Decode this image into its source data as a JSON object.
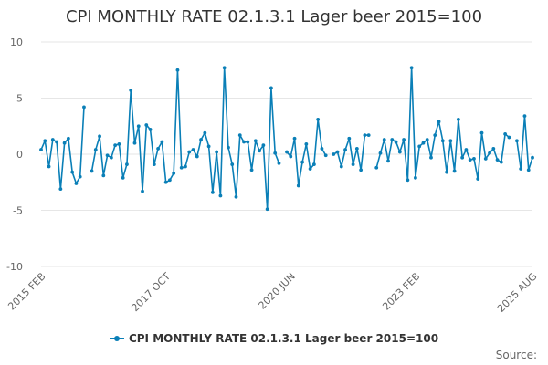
{
  "chart_title": "CPI MONTHLY RATE 02.1.3.1 Lager beer 2015=100",
  "source_label": "Source:",
  "legend": {
    "label": "CPI MONTHLY RATE 02.1.3.1 Lager beer 2015=100"
  },
  "colors": {
    "series": "#0a7fb7",
    "grid": "#e6e6e6",
    "text": "#333333",
    "axis_text": "#666666"
  },
  "chart_data": {
    "type": "line",
    "title": "CPI MONTHLY RATE 02.1.3.1 Lager beer 2015=100",
    "xlabel": "",
    "ylabel": "",
    "ylim": [
      -10,
      10
    ],
    "yticks": [
      10,
      5,
      0,
      -5,
      -10
    ],
    "x_start": "2015 FEB",
    "x_end": "2025 AUG",
    "xticks": [
      "2015 FEB",
      "2017 OCT",
      "2020 JUN",
      "2023 FEB",
      "2025 AUG"
    ],
    "grid": true,
    "legend_position": "bottom",
    "series": [
      {
        "name": "CPI MONTHLY RATE 02.1.3.1 Lager beer 2015=100",
        "values": [
          0.4,
          1.2,
          -1.1,
          1.3,
          1.1,
          -3.1,
          1.0,
          1.4,
          -1.6,
          -2.6,
          -2.0,
          4.2,
          null,
          -1.5,
          0.4,
          1.6,
          -1.9,
          -0.1,
          -0.3,
          0.8,
          0.9,
          -2.1,
          -0.9,
          5.7,
          1.0,
          2.5,
          -3.3,
          2.6,
          2.2,
          -0.9,
          0.5,
          1.1,
          -2.5,
          -2.3,
          -1.7,
          7.5,
          -1.2,
          -1.1,
          0.2,
          0.4,
          -0.2,
          1.3,
          1.9,
          0.7,
          -3.4,
          0.2,
          -3.7,
          7.7,
          0.6,
          -0.9,
          -3.8,
          1.7,
          1.1,
          1.1,
          -1.4,
          1.2,
          0.3,
          0.8,
          -4.9,
          5.9,
          0.1,
          -0.8,
          null,
          0.2,
          -0.2,
          1.4,
          -2.8,
          -0.7,
          0.9,
          -1.3,
          -0.9,
          3.1,
          0.5,
          -0.1,
          null,
          0.0,
          0.2,
          -1.1,
          0.4,
          1.4,
          -0.9,
          0.5,
          -1.4,
          1.7,
          1.7,
          null,
          -1.2,
          0.1,
          1.3,
          -0.6,
          1.3,
          1.1,
          0.2,
          1.3,
          -2.3,
          7.7,
          -2.1,
          0.7,
          1.0,
          1.3,
          -0.3,
          1.7,
          2.9,
          1.2,
          -1.6,
          1.2,
          -1.5,
          3.1,
          -0.3,
          0.4,
          -0.5,
          -0.4,
          -2.2,
          1.9,
          -0.4,
          0.1,
          0.5,
          -0.5,
          -0.7,
          1.8,
          1.5,
          null,
          1.2,
          -1.3,
          3.4,
          -1.4,
          -0.3
        ]
      }
    ]
  }
}
